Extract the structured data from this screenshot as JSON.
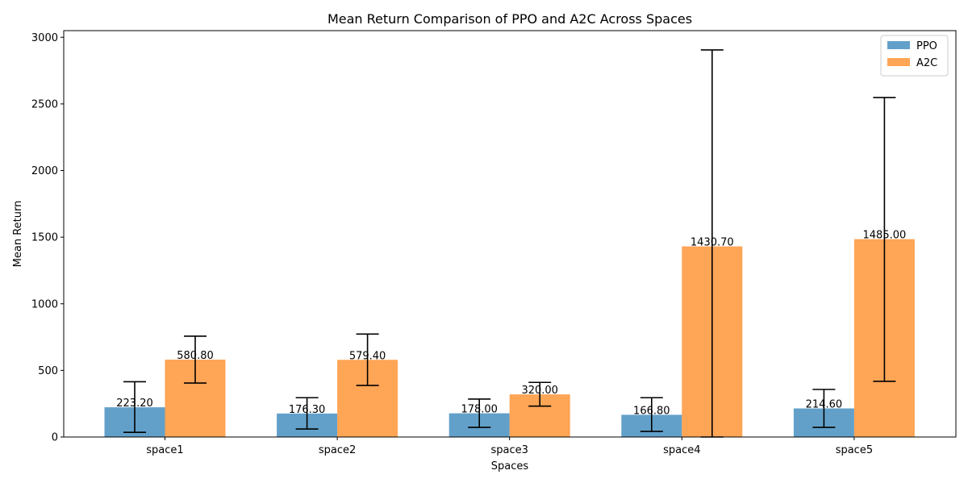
{
  "chart_data": {
    "type": "bar",
    "title": "Mean Return Comparison of PPO and A2C Across Spaces",
    "xlabel": "Spaces",
    "ylabel": "Mean Return",
    "categories": [
      "space1",
      "space2",
      "space3",
      "space4",
      "space5"
    ],
    "ylim": [
      0,
      3050
    ],
    "yticks": [
      0,
      500,
      1000,
      1500,
      2000,
      2500,
      3000
    ],
    "grid": false,
    "legend_position": "top-right",
    "series": [
      {
        "name": "PPO",
        "color": "#1f77b4",
        "values": [
          223.2,
          176.3,
          178.0,
          166.8,
          214.6
        ],
        "labels": [
          "223.20",
          "176.30",
          "178.00",
          "166.80",
          "214.60"
        ],
        "error_low": [
          35,
          60,
          72,
          42,
          72
        ],
        "error_high": [
          415,
          295,
          285,
          295,
          357
        ]
      },
      {
        "name": "A2C",
        "color": "#ff7f0e",
        "values": [
          580.8,
          579.4,
          320.0,
          1430.7,
          1485.0
        ],
        "labels": [
          "580.80",
          "579.40",
          "320.00",
          "1430.70",
          "1485.00"
        ],
        "error_low": [
          405,
          387,
          232,
          0,
          418
        ],
        "error_high": [
          757,
          773,
          410,
          2905,
          2548
        ]
      }
    ]
  }
}
